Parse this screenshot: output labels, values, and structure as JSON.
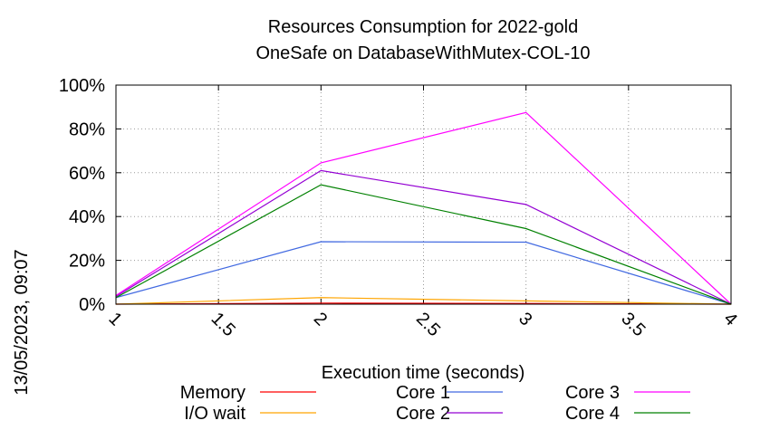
{
  "chart_data": {
    "type": "line",
    "title": "Resources Consumption for 2022-gold",
    "subtitle": "OneSafe on DatabaseWithMutex-COL-10",
    "xlabel": "Execution time (seconds)",
    "ylabel": "",
    "side_label": "13/05/2023, 09:07",
    "xlim": [
      1,
      4
    ],
    "ylim": [
      0,
      100
    ],
    "x_ticks": [
      "1",
      "1.5",
      "2",
      "2.5",
      "3",
      "3.5",
      "4"
    ],
    "y_ticks": [
      "0%",
      "20%",
      "40%",
      "60%",
      "80%",
      "100%"
    ],
    "grid": true,
    "legend_position": "bottom",
    "x": [
      1,
      2,
      3,
      4
    ],
    "series": [
      {
        "name": "Memory",
        "color": "#ff0000",
        "values": [
          0,
          0.5,
          0.3,
          0
        ]
      },
      {
        "name": "I/O wait",
        "color": "#ffa500",
        "values": [
          0,
          3,
          1.5,
          0
        ]
      },
      {
        "name": "Core 1",
        "color": "#4169e1",
        "values": [
          3,
          28.5,
          28.3,
          0
        ]
      },
      {
        "name": "Core 2",
        "color": "#9400d3",
        "values": [
          3.5,
          61,
          45.5,
          0
        ]
      },
      {
        "name": "Core 3",
        "color": "#ff00ff",
        "values": [
          4,
          64.5,
          87.5,
          0
        ]
      },
      {
        "name": "Core 4",
        "color": "#008000",
        "values": [
          3,
          54.5,
          34.5,
          0
        ]
      }
    ]
  }
}
